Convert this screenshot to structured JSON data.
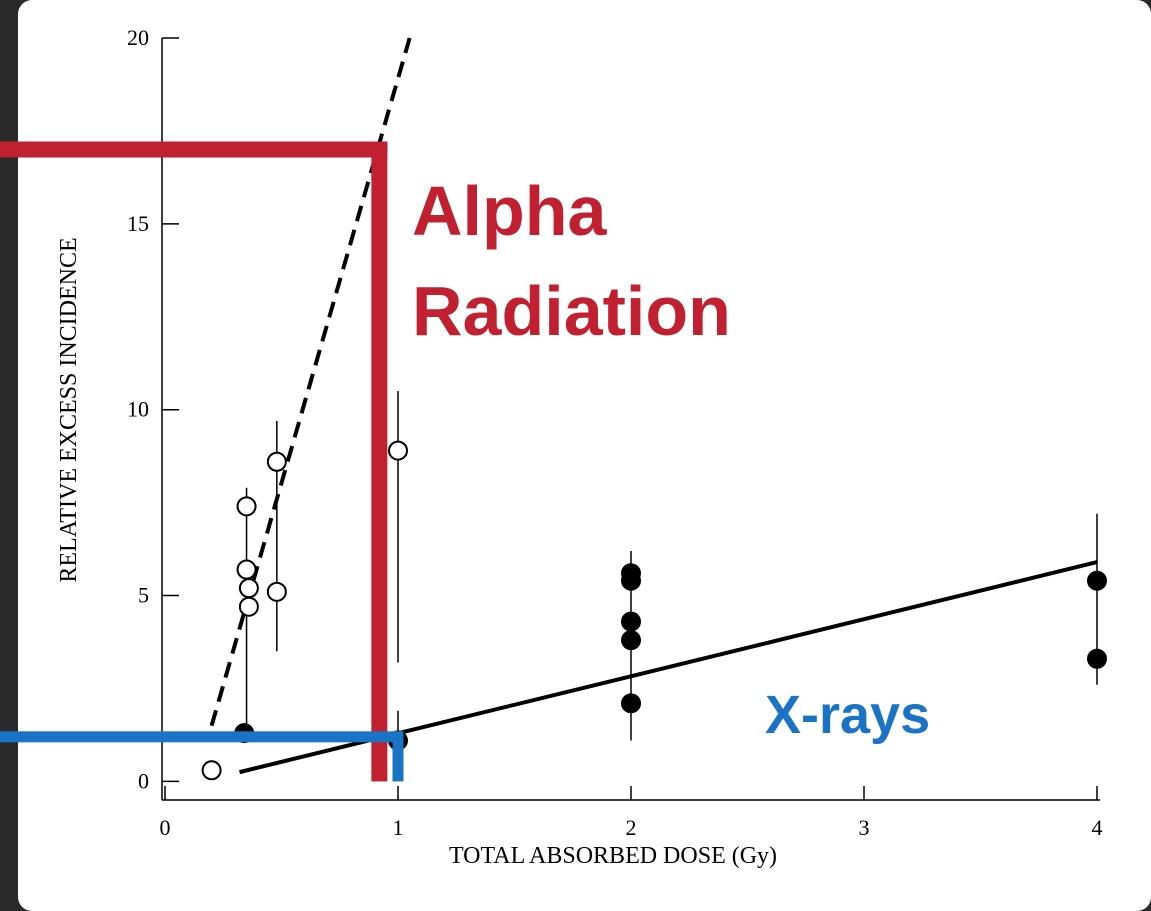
{
  "chart_data": {
    "type": "scatter",
    "xlabel": "TOTAL ABSORBED DOSE (Gy)",
    "ylabel": "RELATIVE  EXCESS  INCIDENCE",
    "xlim": [
      0,
      4
    ],
    "ylim": [
      -0.5,
      20
    ],
    "xticks": [
      0,
      1,
      2,
      3,
      4
    ],
    "yticks": [
      0,
      5,
      10,
      15,
      20
    ],
    "series": [
      {
        "marker": "open",
        "color": "#000000",
        "x": [
          0.2,
          0.35,
          0.35,
          0.36,
          0.36,
          0.48,
          0.48,
          1.0
        ],
        "values": [
          0.3,
          7.4,
          5.7,
          5.2,
          4.7,
          8.6,
          5.1,
          8.9
        ]
      },
      {
        "marker": "filled",
        "color": "#000000",
        "x": [
          0.34,
          1.0,
          2,
          2,
          2,
          2,
          2,
          4,
          4
        ],
        "values": [
          1.3,
          1.1,
          5.6,
          5.4,
          4.3,
          3.8,
          2.1,
          5.4,
          3.3
        ]
      }
    ],
    "error_bars": [
      {
        "x": 0.35,
        "low": 1.2,
        "high": 7.9
      },
      {
        "x": 0.48,
        "low": 3.5,
        "high": 9.7
      },
      {
        "x": 1.0,
        "low": 3.2,
        "high": 10.5
      },
      {
        "x": 1.0,
        "low": 0.3,
        "high": 1.9
      },
      {
        "x": 2,
        "low": 1.1,
        "high": 6.2
      },
      {
        "x": 4,
        "low": 2.6,
        "high": 7.2
      }
    ],
    "fits": [
      {
        "dash": true,
        "x": [
          0.2,
          1.05
        ],
        "values": [
          1.5,
          20
        ]
      },
      {
        "dash": false,
        "x": [
          0.32,
          4
        ],
        "values": [
          0.25,
          5.9
        ]
      }
    ],
    "guides": [
      {
        "color": "#c0202f",
        "x": 0.92,
        "y": 17
      },
      {
        "color": "#1a73c4",
        "x": 1.0,
        "y": 1.2
      }
    ],
    "annotations": [
      {
        "text": [
          "Alpha",
          "Radiation"
        ],
        "color": "#c0202f"
      },
      {
        "text": [
          "X-rays"
        ],
        "color": "#1a73c4"
      }
    ]
  }
}
